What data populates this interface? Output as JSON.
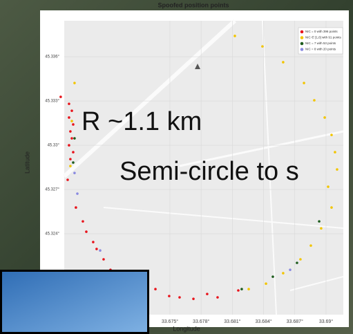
{
  "chart_data": {
    "type": "scatter",
    "title": "Spoofed position points",
    "xlabel": "Longitude",
    "ylabel": "Latitude",
    "annotations": [
      "R ~1.1 km",
      "Semi-circle to s"
    ],
    "xlim": [
      33.66485,
      33.69166
    ],
    "ylim": [
      45.31852,
      45.33844
    ],
    "xticks": [
      {
        "value": 33.675,
        "label": "33.675°"
      },
      {
        "value": 33.678,
        "label": "33.678°"
      },
      {
        "value": 33.681,
        "label": "33.681°"
      },
      {
        "value": 33.684,
        "label": "33.684°"
      },
      {
        "value": 33.687,
        "label": "33.687°"
      },
      {
        "value": 33.69,
        "label": "33.69°"
      }
    ],
    "yticks": [
      {
        "value": 45.324,
        "label": "45.324°"
      },
      {
        "value": 45.327,
        "label": "45.327°"
      },
      {
        "value": 45.33,
        "label": "45.33°"
      },
      {
        "value": 45.333,
        "label": "45.333°"
      },
      {
        "value": 45.336,
        "label": "45.336°"
      }
    ],
    "grid": true,
    "legend": "upper right",
    "series": [
      {
        "name": "NIC = 0 with 396 points",
        "color": "#e8141c",
        "x": [
          33.66451,
          33.66531,
          33.66558,
          33.66531,
          33.66571,
          33.66544,
          33.66558,
          33.66531,
          33.66571,
          33.66544,
          33.66518,
          33.66597,
          33.66664,
          33.66697,
          33.66763,
          33.66796,
          33.66863,
          33.66929,
          33.67029,
          33.67195,
          33.67361,
          33.67493,
          33.67593,
          33.67726,
          33.67858,
          33.67958,
          33.68157
        ],
        "values": [
          45.33328,
          45.33281,
          45.33234,
          45.33188,
          45.33141,
          45.33094,
          45.33047,
          45.33,
          45.32953,
          45.32906,
          45.32766,
          45.32578,
          45.32484,
          45.32414,
          45.32344,
          45.32297,
          45.32227,
          45.32156,
          45.32086,
          45.32016,
          45.32025,
          45.31978,
          45.31969,
          45.31959,
          45.31992,
          45.31969,
          45.32016
        ]
      },
      {
        "name": "NIC ∈ [1,6] with 91 points",
        "color": "#f2c500",
        "x": [
          33.68124,
          33.68389,
          33.68588,
          33.68788,
          33.68887,
          33.68987,
          33.69053,
          33.69086,
          33.69106,
          33.6902,
          33.69053,
          33.68953,
          33.68854,
          33.68754,
          33.68588,
          33.68423,
          33.68257,
          33.66558,
          33.66544,
          33.66584
        ],
        "values": [
          45.33741,
          45.3367,
          45.33563,
          45.33422,
          45.33305,
          45.33188,
          45.3307,
          45.32953,
          45.32836,
          45.32719,
          45.32578,
          45.32437,
          45.3232,
          45.32227,
          45.32133,
          45.32062,
          45.32025,
          45.33164,
          45.32859,
          45.33422
        ]
      },
      {
        "name": "NIC = 7 with 53 points",
        "color": "#1d5c1d",
        "x": [
          33.68934,
          33.68721,
          33.68489,
          33.6819,
          33.66584,
          33.66571
        ],
        "values": [
          45.32484,
          45.32203,
          45.32109,
          45.32025,
          45.33047,
          45.32883
        ]
      },
      {
        "name": "NIC = 8 with 20 points",
        "color": "#8a8ae0",
        "x": [
          33.66584,
          33.66611,
          33.6683,
          33.67128,
          33.68655
        ],
        "values": [
          45.32812,
          45.32672,
          45.32287,
          45.32062,
          45.32156
        ]
      }
    ]
  }
}
